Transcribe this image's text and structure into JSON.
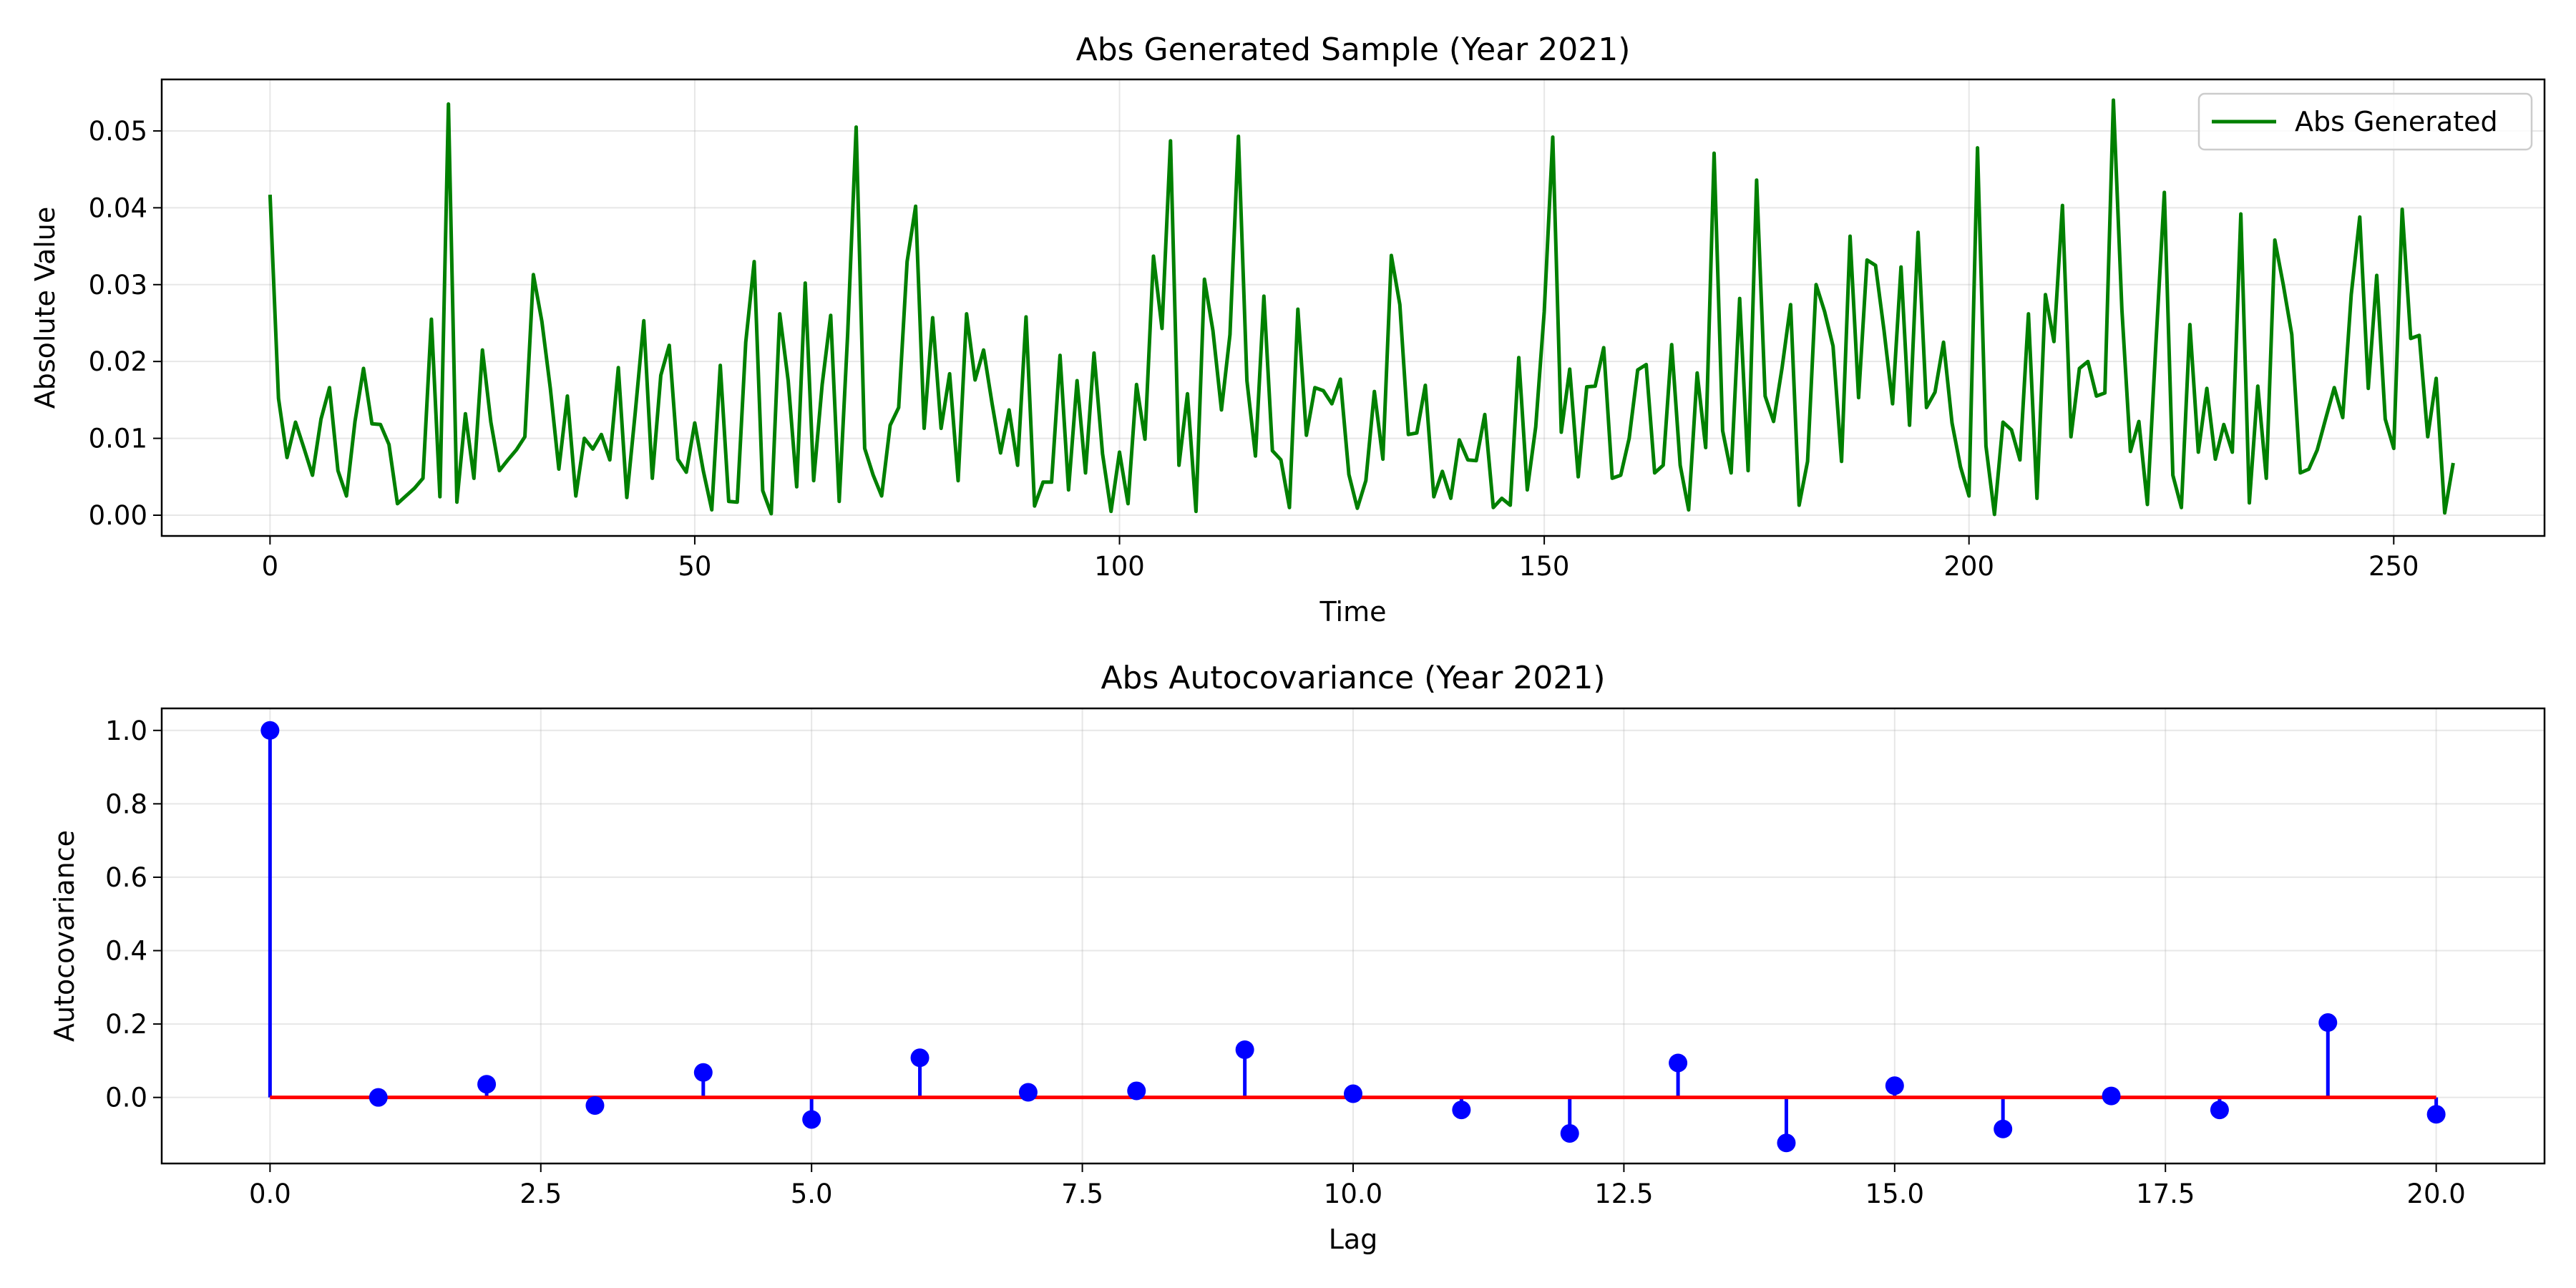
{
  "chart_data": [
    {
      "type": "line",
      "title": "Abs Generated Sample (Year 2021)",
      "xlabel": "Time",
      "ylabel": "Absolute Value",
      "xlim": [
        -12.75,
        267.75
      ],
      "ylim": [
        -0.0027,
        0.0567
      ],
      "xticks": [
        0,
        50,
        100,
        150,
        200,
        250
      ],
      "xtick_labels": [
        "0",
        "50",
        "100",
        "150",
        "200",
        "250"
      ],
      "yticks": [
        0.0,
        0.01,
        0.02,
        0.03,
        0.04,
        0.05
      ],
      "ytick_labels": [
        "0.00",
        "0.01",
        "0.02",
        "0.03",
        "0.04",
        "0.05"
      ],
      "grid": true,
      "legend_position": "top-right",
      "series": [
        {
          "name": "Abs Generated",
          "color": "#008000",
          "x_start": 0,
          "x_step": 1,
          "values": [
            0.0417,
            0.0152,
            0.0075,
            0.0121,
            0.0087,
            0.0052,
            0.0125,
            0.0166,
            0.0058,
            0.0025,
            0.0122,
            0.0191,
            0.0119,
            0.0118,
            0.0092,
            0.0015,
            0.0025,
            0.0035,
            0.0048,
            0.0255,
            0.0024,
            0.0535,
            0.0017,
            0.0132,
            0.0048,
            0.0215,
            0.0121,
            0.0058,
            0.0072,
            0.0085,
            0.0102,
            0.0313,
            0.0252,
            0.0165,
            0.006,
            0.0155,
            0.0025,
            0.01,
            0.0086,
            0.0105,
            0.0072,
            0.0192,
            0.0023,
            0.0134,
            0.0253,
            0.0048,
            0.0182,
            0.0221,
            0.0073,
            0.0056,
            0.012,
            0.0058,
            0.0007,
            0.0195,
            0.0018,
            0.0017,
            0.0225,
            0.033,
            0.0032,
            0.0002,
            0.0262,
            0.0175,
            0.0037,
            0.0302,
            0.0045,
            0.017,
            0.026,
            0.0018,
            0.0235,
            0.0505,
            0.0087,
            0.0052,
            0.0025,
            0.0117,
            0.014,
            0.033,
            0.0402,
            0.0113,
            0.0257,
            0.0113,
            0.0184,
            0.0045,
            0.0262,
            0.0176,
            0.0215,
            0.0145,
            0.0081,
            0.0137,
            0.0065,
            0.0258,
            0.0012,
            0.0043,
            0.0043,
            0.0208,
            0.0033,
            0.0175,
            0.0055,
            0.0211,
            0.008,
            0.0005,
            0.0082,
            0.0015,
            0.017,
            0.0099,
            0.0337,
            0.0243,
            0.0487,
            0.0065,
            0.0158,
            0.0005,
            0.0307,
            0.024,
            0.0137,
            0.0235,
            0.0493,
            0.0175,
            0.0077,
            0.0285,
            0.0084,
            0.0072,
            0.001,
            0.0268,
            0.0104,
            0.0166,
            0.0162,
            0.0145,
            0.0177,
            0.0053,
            0.0009,
            0.0045,
            0.0161,
            0.0073,
            0.0338,
            0.0274,
            0.0105,
            0.0107,
            0.0169,
            0.0024,
            0.0057,
            0.0022,
            0.0098,
            0.0072,
            0.0071,
            0.0131,
            0.001,
            0.0022,
            0.0013,
            0.0205,
            0.0033,
            0.0115,
            0.0265,
            0.0492,
            0.0108,
            0.019,
            0.005,
            0.0167,
            0.0168,
            0.0218,
            0.0048,
            0.0052,
            0.01,
            0.0189,
            0.0196,
            0.0055,
            0.0065,
            0.0222,
            0.0065,
            0.0007,
            0.0185,
            0.0088,
            0.0471,
            0.011,
            0.0055,
            0.0282,
            0.0058,
            0.0436,
            0.0155,
            0.0122,
            0.0192,
            0.0274,
            0.0013,
            0.007,
            0.03,
            0.0265,
            0.022,
            0.007,
            0.0363,
            0.0153,
            0.0332,
            0.0325,
            0.024,
            0.0145,
            0.0323,
            0.0117,
            0.0368,
            0.014,
            0.016,
            0.0225,
            0.012,
            0.0063,
            0.0025,
            0.0478,
            0.009,
            0.0001,
            0.0121,
            0.0111,
            0.0072,
            0.0262,
            0.0022,
            0.0287,
            0.0226,
            0.0403,
            0.0102,
            0.0191,
            0.02,
            0.0155,
            0.0159,
            0.054,
            0.0267,
            0.0083,
            0.0122,
            0.0014,
            0.0223,
            0.042,
            0.0052,
            0.001,
            0.0248,
            0.0082,
            0.0165,
            0.0073,
            0.0118,
            0.0082,
            0.0392,
            0.0016,
            0.0168,
            0.0048,
            0.0358,
            0.03,
            0.0235,
            0.0055,
            0.006,
            0.0085,
            0.0126,
            0.0166,
            0.0127,
            0.0287,
            0.0388,
            0.0165,
            0.0312,
            0.0125,
            0.0087,
            0.0398,
            0.023,
            0.0234,
            0.0102,
            0.0178,
            0.0003,
            0.0068
          ]
        }
      ]
    },
    {
      "type": "stem",
      "title": "Abs Autocovariance (Year 2021)",
      "xlabel": "Lag",
      "ylabel": "Autocovariance",
      "xlim": [
        -1.0,
        21.0
      ],
      "ylim": [
        -0.18,
        1.06
      ],
      "xticks": [
        0.0,
        2.5,
        5.0,
        7.5,
        10.0,
        12.5,
        15.0,
        17.5,
        20.0
      ],
      "xtick_labels": [
        "0.0",
        "2.5",
        "5.0",
        "7.5",
        "10.0",
        "12.5",
        "15.0",
        "17.5",
        "20.0"
      ],
      "yticks": [
        0.0,
        0.2,
        0.4,
        0.6,
        0.8,
        1.0
      ],
      "ytick_labels": [
        "0.0",
        "0.2",
        "0.4",
        "0.6",
        "0.8",
        "1.0"
      ],
      "grid": true,
      "stem_color": "#0000ff",
      "baseline_color": "#ff0000",
      "x": [
        0,
        1,
        2,
        3,
        4,
        5,
        6,
        7,
        8,
        9,
        10,
        11,
        12,
        13,
        14,
        15,
        16,
        17,
        18,
        19,
        20
      ],
      "values": [
        1.0,
        0.0,
        0.036,
        -0.022,
        0.068,
        -0.06,
        0.108,
        0.014,
        0.018,
        0.13,
        0.01,
        -0.034,
        -0.098,
        0.094,
        -0.124,
        0.032,
        -0.086,
        0.004,
        -0.034,
        0.204,
        -0.046
      ]
    }
  ]
}
